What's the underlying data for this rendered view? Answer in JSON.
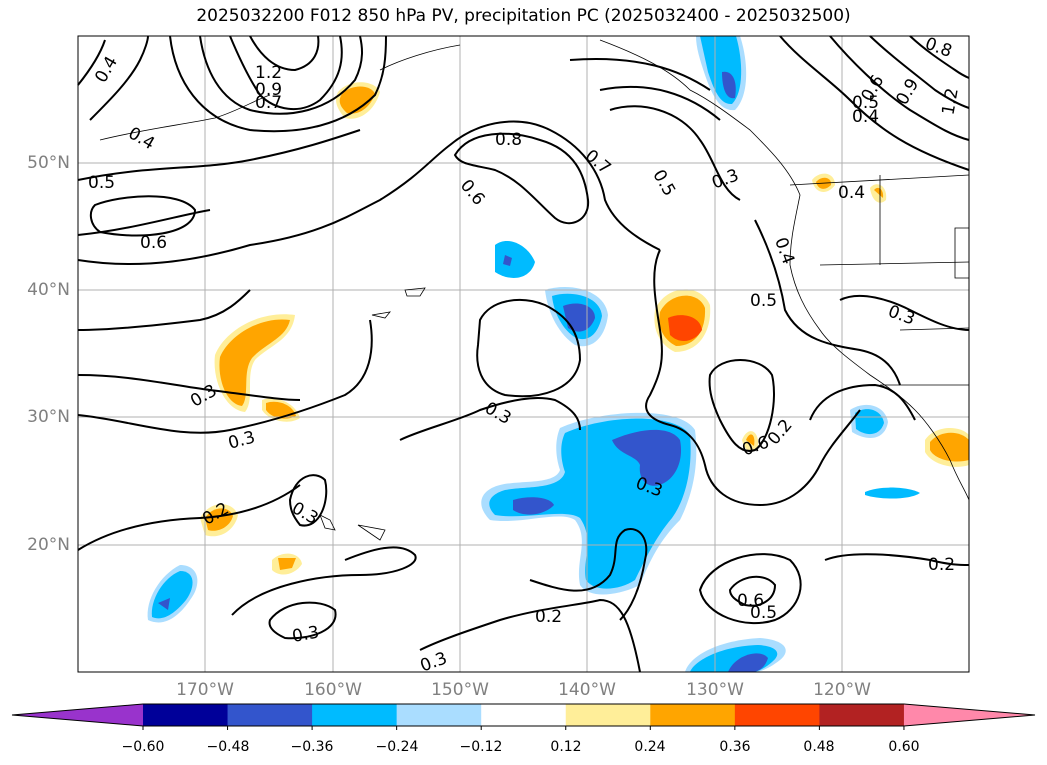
{
  "title": "2025032200 F012 850 hPa PV, precipitation PC (2025032400 - 2025032500)",
  "colors": {
    "background": "#ffffff",
    "frame": "#000000",
    "grid": "#b0b0b0",
    "contour": "#000000",
    "axis_label": "#808080"
  },
  "map": {
    "lon_range": [
      -180,
      -110
    ],
    "lat_range": [
      10,
      60
    ],
    "lon_labels": [
      "170°W",
      "160°W",
      "150°W",
      "140°W",
      "130°W",
      "120°W"
    ],
    "lat_labels": [
      "50°N",
      "40°N",
      "30°N",
      "20°N"
    ],
    "grid": true
  },
  "colorbar": {
    "colors": [
      "#9933cc",
      "#000099",
      "#3355cc",
      "#00bbff",
      "#aaddff",
      "#ffffff",
      "#ffee99",
      "#ffa500",
      "#ff4500",
      "#b22222",
      "#ff88aa"
    ],
    "ticks": [
      "−0.60",
      "−0.48",
      "−0.36",
      "−0.24",
      "−0.12",
      "0.12",
      "0.24",
      "0.36",
      "0.48",
      "0.60"
    ]
  },
  "contour_labels": [
    "0.4",
    "1.2",
    "0.9",
    "0.7",
    "0.4",
    "0.8",
    "0.5",
    "0.6",
    "0.6",
    "0.7",
    "0.5",
    "0.3",
    "0.4",
    "0.4",
    "0.5",
    "0.3",
    "0.3",
    "0.3",
    "0.3",
    "0.6",
    "0.3",
    "0.2",
    "0.3",
    "0.2",
    "0.6",
    "0.5",
    "0.3",
    "0.2",
    "0.3",
    "0.2",
    "0.8",
    "1.2",
    "0.9",
    "0.6",
    "0.5",
    "0.4"
  ]
}
